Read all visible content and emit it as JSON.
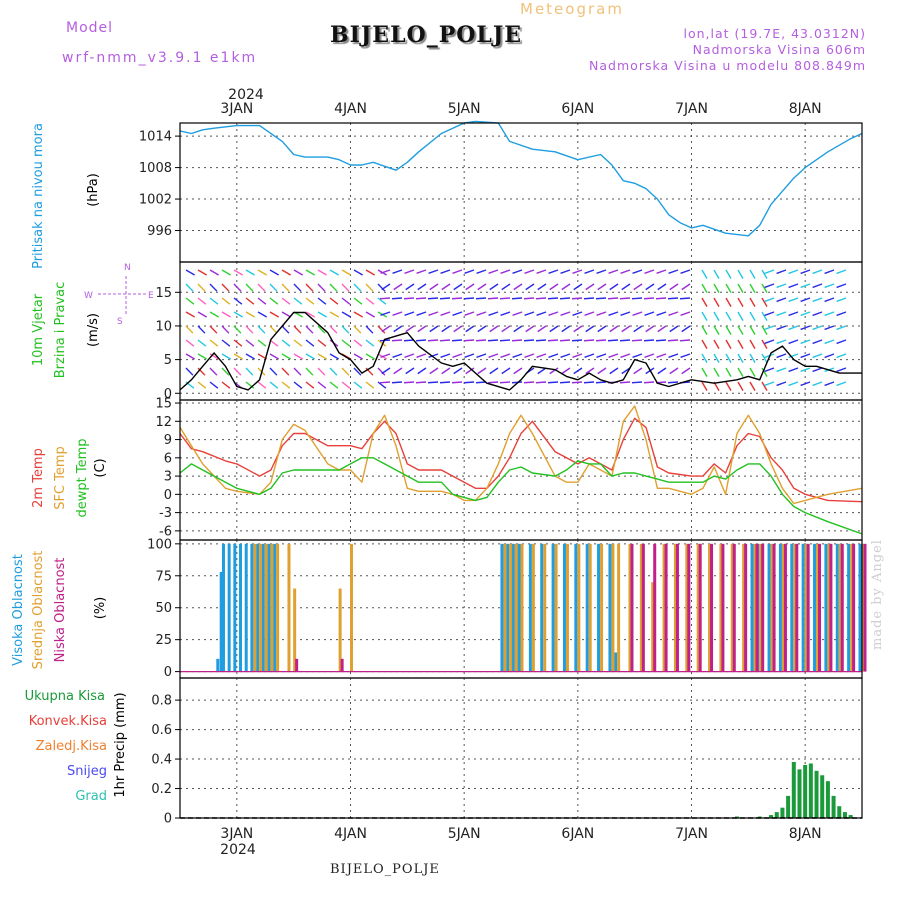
{
  "header": {
    "model_label": "Model",
    "model_name": "wrf-nmm_v3.9.1 e1km",
    "title": "BIJELO_POLJE",
    "subtitle": "Meteogram",
    "coords": "lon,lat (19.7E, 43.0312N)",
    "elevation": "Nadmorska Visina 606m",
    "model_elevation": "Nadmorska Visina u modelu 808.849m",
    "year": "2024",
    "footer": "BIJELO_POLJE",
    "credit": "made by Angel"
  },
  "colors": {
    "pressure": "#1e9de0",
    "wind_speed": "#000000",
    "t2m": "#e8403a",
    "tsfc": "#e0a030",
    "dewpt": "#22c020",
    "high_cloud": "#1e9de0",
    "mid_cloud": "#e0a030",
    "low_cloud": "#c0208a",
    "total_precip": "#1a9a3a"
  },
  "chart_data": [
    {
      "type": "line",
      "panel": "pressure",
      "ylabel_primary": "Pritisak na nivou mora",
      "ylabel_unit": "(hPa)",
      "xticks": [
        "3JAN",
        "4JAN",
        "5JAN",
        "6JAN",
        "7JAN",
        "8JAN"
      ],
      "yticks": [
        996,
        1002,
        1008,
        1014
      ],
      "ylim": [
        990,
        1016.5
      ],
      "x": [
        2.5,
        2.6,
        2.7,
        2.8,
        3.0,
        3.2,
        3.4,
        3.5,
        3.6,
        3.8,
        3.9,
        4.0,
        4.1,
        4.2,
        4.4,
        4.5,
        4.6,
        4.8,
        5.0,
        5.1,
        5.3,
        5.4,
        5.6,
        5.8,
        6.0,
        6.2,
        6.3,
        6.4,
        6.5,
        6.6,
        6.7,
        6.8,
        6.9,
        7.0,
        7.1,
        7.3,
        7.5,
        7.6,
        7.7,
        7.9,
        8.0,
        8.2,
        8.4,
        8.5
      ],
      "series": [
        {
          "values": [
            1015,
            1014.5,
            1015.2,
            1015.5,
            1016,
            1016,
            1013,
            1010.5,
            1010,
            1010,
            1009.5,
            1008.5,
            1008.5,
            1009,
            1007.5,
            1009,
            1011,
            1014.5,
            1016.5,
            1016.8,
            1016.5,
            1013,
            1011.5,
            1011,
            1009.5,
            1010.5,
            1008.5,
            1005.5,
            1005,
            1004,
            1002,
            999,
            997.5,
            996.5,
            997,
            995.5,
            995,
            997,
            1001,
            1006,
            1008,
            1011,
            1013.5,
            1014.5
          ]
        }
      ]
    },
    {
      "type": "line",
      "panel": "wind",
      "ylabel_primary": "10m Vjetar",
      "ylabel_secondary": "Brzina i Pravac",
      "ylabel_unit": "(m/s)",
      "direction_legend": [
        "N",
        "W",
        "E",
        "S"
      ],
      "yticks": [
        0,
        5,
        10,
        15
      ],
      "ylim": [
        -1,
        19.5
      ],
      "x": [
        2.5,
        2.6,
        2.7,
        2.8,
        2.9,
        3.0,
        3.1,
        3.2,
        3.3,
        3.5,
        3.6,
        3.8,
        3.9,
        4.0,
        4.1,
        4.2,
        4.3,
        4.5,
        4.6,
        4.8,
        4.9,
        5.0,
        5.1,
        5.2,
        5.4,
        5.5,
        5.6,
        5.8,
        5.9,
        6.0,
        6.1,
        6.2,
        6.3,
        6.4,
        6.5,
        6.6,
        6.7,
        6.8,
        7.0,
        7.2,
        7.4,
        7.5,
        7.6,
        7.7,
        7.8,
        7.9,
        8.0,
        8.1,
        8.3,
        8.5
      ],
      "series": [
        {
          "name": "speed",
          "values": [
            0.5,
            2,
            4,
            6,
            4,
            1,
            0.5,
            2,
            8,
            12,
            12,
            9,
            6,
            5,
            3,
            4,
            8,
            9,
            7,
            4.5,
            4,
            4.5,
            3,
            1.5,
            0.5,
            2,
            4,
            3.5,
            2.5,
            2,
            3,
            2,
            1.5,
            2,
            5,
            4.5,
            1.5,
            1,
            2,
            1.5,
            2,
            2.5,
            2,
            6,
            7,
            5,
            4,
            4,
            3,
            3
          ]
        }
      ]
    },
    {
      "type": "line",
      "panel": "temperature",
      "ylabel_primary": "2m Temp",
      "ylabel_secondary": "SFC Temp",
      "ylabel_tertiary": "dewpt Temp",
      "ylabel_unit": "(C)",
      "yticks": [
        -6,
        -3,
        0,
        3,
        6,
        9,
        12,
        15
      ],
      "ylim": [
        -7.5,
        15.5
      ],
      "x": [
        2.5,
        2.6,
        2.7,
        2.9,
        3.0,
        3.2,
        3.3,
        3.4,
        3.5,
        3.6,
        3.8,
        3.9,
        4.0,
        4.1,
        4.2,
        4.3,
        4.4,
        4.5,
        4.6,
        4.8,
        4.9,
        5.0,
        5.1,
        5.2,
        5.3,
        5.4,
        5.5,
        5.6,
        5.8,
        5.9,
        6.0,
        6.1,
        6.2,
        6.3,
        6.4,
        6.5,
        6.6,
        6.7,
        6.8,
        7.0,
        7.1,
        7.2,
        7.3,
        7.4,
        7.5,
        7.6,
        7.7,
        7.8,
        7.9,
        8.0,
        8.2,
        8.5
      ],
      "series": [
        {
          "name": "2m Temp",
          "values": [
            10,
            7.5,
            7,
            5.5,
            5,
            3,
            4,
            8,
            10,
            10,
            8,
            8,
            8,
            7.5,
            10,
            12,
            10,
            5,
            4,
            4,
            3,
            2,
            1,
            1,
            3,
            6,
            10,
            12,
            7,
            6,
            5,
            6,
            5,
            4,
            9,
            12.5,
            11,
            4.5,
            3.5,
            3,
            3,
            5,
            3.5,
            8,
            10,
            9.5,
            6,
            4,
            1,
            0,
            -1,
            -1.2
          ]
        },
        {
          "name": "SFC Temp",
          "values": [
            11,
            8,
            5,
            1,
            0.5,
            0,
            2,
            9,
            11.5,
            10.5,
            5,
            4,
            4,
            2,
            10,
            13,
            8,
            1,
            0.5,
            0.5,
            0,
            -1,
            -1,
            1,
            5,
            10,
            13,
            10,
            3,
            2,
            2,
            5,
            4,
            3,
            12,
            14.5,
            9,
            1,
            1,
            0,
            1,
            4.5,
            0,
            10,
            13,
            10,
            5,
            1,
            -1.5,
            -1,
            0,
            1
          ]
        },
        {
          "name": "dewpt Temp",
          "values": [
            3.5,
            5,
            4,
            2,
            1,
            0,
            1,
            3.5,
            4,
            4,
            4,
            4,
            5,
            6,
            6,
            5,
            4,
            3,
            2,
            2,
            0,
            -0.5,
            -1,
            -0.5,
            2,
            4,
            4.5,
            3.5,
            3,
            4,
            5.5,
            5,
            5,
            3,
            3.5,
            3.5,
            3,
            2.5,
            2,
            2,
            2,
            3,
            2.5,
            4,
            5,
            5,
            3,
            0,
            -2,
            -3,
            -4.5,
            -6.5
          ]
        }
      ]
    },
    {
      "type": "bar",
      "panel": "cloud",
      "ylabel_primary": "Visoka Oblacnost",
      "ylabel_secondary": "Srednja Oblacnost",
      "ylabel_tertiary": "Niska Oblacnost",
      "ylabel_unit": "(%)",
      "yticks": [
        0,
        25,
        50,
        75,
        100
      ],
      "ylim": [
        -5,
        103
      ],
      "x": [
        2.85,
        2.88,
        2.9,
        2.95,
        3.0,
        3.05,
        3.1,
        3.15,
        3.2,
        3.25,
        3.3,
        3.35,
        3.45,
        3.5,
        3.9,
        4.0,
        5.35,
        5.4,
        5.45,
        5.5,
        5.6,
        5.7,
        5.8,
        5.9,
        6.0,
        6.1,
        6.2,
        6.3,
        6.35,
        6.45,
        6.55,
        6.65,
        6.75,
        6.85,
        6.95,
        7.05,
        7.15,
        7.25,
        7.35,
        7.45,
        7.55,
        7.6,
        7.7,
        7.8,
        7.9,
        8.0,
        8.1,
        8.2,
        8.3,
        8.4,
        8.5
      ],
      "series": [
        {
          "name": "high",
          "values": [
            10,
            78,
            100,
            100,
            100,
            100,
            100,
            100,
            100,
            100,
            100,
            100,
            0,
            0,
            0,
            0,
            100,
            100,
            100,
            100,
            100,
            100,
            100,
            100,
            100,
            100,
            100,
            100,
            15,
            0,
            0,
            0,
            0,
            0,
            0,
            0,
            0,
            0,
            0,
            0,
            100,
            100,
            100,
            100,
            100,
            100,
            100,
            100,
            100,
            100,
            100
          ]
        },
        {
          "name": "mid",
          "values": [
            0,
            0,
            0,
            0,
            0,
            0,
            0,
            100,
            100,
            100,
            100,
            100,
            100,
            65,
            65,
            100,
            100,
            100,
            100,
            100,
            100,
            100,
            100,
            100,
            100,
            100,
            100,
            100,
            100,
            100,
            100,
            70,
            100,
            100,
            100,
            100,
            100,
            100,
            100,
            100,
            100,
            100,
            100,
            100,
            100,
            100,
            100,
            100,
            100,
            100,
            100
          ]
        },
        {
          "name": "low",
          "values": [
            0,
            0,
            0,
            0,
            0,
            0,
            0,
            0,
            0,
            0,
            0,
            0,
            0,
            10,
            10,
            0,
            0,
            0,
            0,
            0,
            0,
            0,
            0,
            0,
            0,
            0,
            0,
            0,
            0,
            100,
            100,
            100,
            100,
            100,
            100,
            100,
            100,
            100,
            100,
            100,
            100,
            100,
            100,
            100,
            100,
            100,
            100,
            100,
            100,
            100,
            100
          ]
        }
      ]
    },
    {
      "type": "bar",
      "panel": "precip",
      "ylabel_primary": "1hr Precip (mm)",
      "legend": [
        "Ukupna Kisa",
        "Konvek.Kisa",
        "Zaledj.Kisa",
        "Snijeg",
        "Grad"
      ],
      "yticks": [
        0,
        0.2,
        0.4,
        0.6,
        0.8
      ],
      "ylim": [
        0,
        0.95
      ],
      "x": [
        7.4,
        7.6,
        7.7,
        7.75,
        7.8,
        7.85,
        7.9,
        7.95,
        8.0,
        8.05,
        8.1,
        8.15,
        8.2,
        8.25,
        8.3,
        8.35,
        8.4
      ],
      "series": [
        {
          "name": "Ukupna Kisa",
          "values": [
            0.01,
            0.01,
            0.02,
            0.04,
            0.07,
            0.15,
            0.38,
            0.33,
            0.36,
            0.37,
            0.32,
            0.29,
            0.25,
            0.15,
            0.08,
            0.04,
            0.02
          ]
        }
      ]
    }
  ]
}
